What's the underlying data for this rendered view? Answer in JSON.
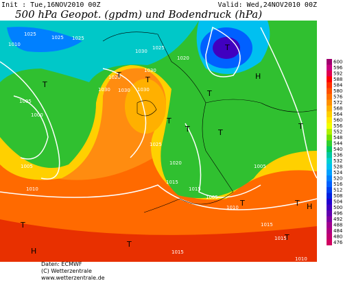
{
  "header": {
    "init": "Init : Tue,16NOV2010 00Z",
    "valid": "Valid: Wed,24NOV2010 00Z",
    "title": "500 hPa Geopot. (gpdm) und Bodendruck (hPa)"
  },
  "map": {
    "labels": [
      "1010",
      "1025",
      "1025",
      "1025",
      "1030",
      "1025",
      "1020",
      "1030",
      "1020",
      "1030",
      "1030",
      "1030",
      "1005",
      "1000",
      "1025",
      "1005",
      "1010",
      "1020",
      "1015",
      "1015",
      "1005",
      "1005",
      "1010",
      "1015",
      "1015",
      "1010",
      "1015",
      "T",
      "T",
      "T",
      "T",
      "H",
      "T",
      "T",
      "T",
      "H",
      "T",
      "T",
      "T",
      "H",
      "T",
      "T",
      "T",
      "T"
    ]
  },
  "legend": {
    "labels": [
      600,
      596,
      592,
      588,
      584,
      580,
      576,
      572,
      568,
      564,
      560,
      556,
      552,
      548,
      544,
      540,
      536,
      532,
      528,
      524,
      520,
      516,
      512,
      508,
      504,
      500,
      496,
      492,
      488,
      484,
      480,
      476
    ],
    "colors": [
      "#a0006e",
      "#c8007d",
      "#e00050",
      "#ff0000",
      "#ff3000",
      "#ff5000",
      "#ff7000",
      "#ff9000",
      "#ffb000",
      "#ffd000",
      "#ffe800",
      "#f0ff00",
      "#b0f000",
      "#70e000",
      "#30d030",
      "#00c860",
      "#00c8a0",
      "#00d0d0",
      "#00c0f0",
      "#00a0ff",
      "#0080ff",
      "#0060ff",
      "#0040f0",
      "#0020e0",
      "#2000d0",
      "#4000c0",
      "#6000b0",
      "#8000a0",
      "#a00090",
      "#b00080",
      "#c00070",
      "#d00060"
    ]
  },
  "footer": {
    "source": "Daten: ECMWF",
    "copyright": "(C) Wetterzentrale",
    "url": "www.wetterzentrale.de"
  }
}
